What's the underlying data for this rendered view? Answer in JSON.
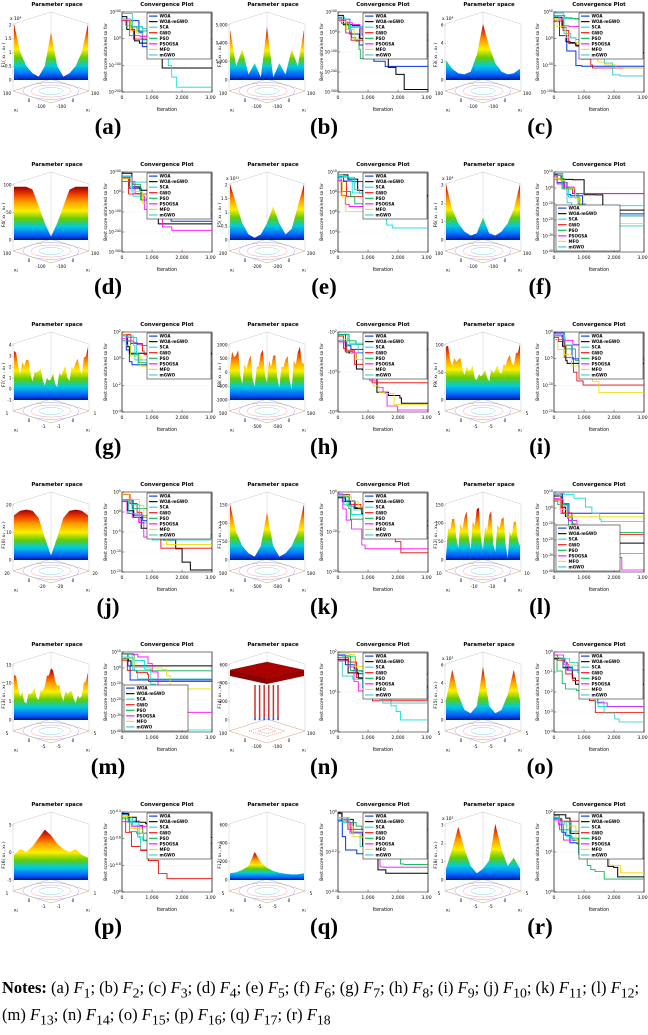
{
  "figure": {
    "type": "grid of 3D parameter-space surface plots paired with convergence line plots",
    "surface_title": "Parameter space",
    "convergence_title": "Convergence Plot",
    "convergence_ylabel": "Best score obtained so far",
    "convergence_xlabel": "Iteration",
    "x_ticks": [
      "0",
      "1,000",
      "2,000",
      "3,000"
    ],
    "legend": [
      {
        "label": "WOA",
        "color": "#0033EE"
      },
      {
        "label": "WOA-mGWO",
        "color": "#000000"
      },
      {
        "label": "SCA",
        "color": "#00E0E0"
      },
      {
        "label": "GWO",
        "color": "#EE0000"
      },
      {
        "label": "PSO",
        "color": "#00B050"
      },
      {
        "label": "PSOGSA",
        "color": "#FF00FF"
      },
      {
        "label": "MFO",
        "color": "#EEDC00"
      },
      {
        "label": "mGWO",
        "color": "#35C8C8"
      }
    ]
  },
  "chart_data": [
    {
      "label": "(a)",
      "function": "F1",
      "zlabel": "F1( x₁ , x₂ )",
      "scale": "x 10⁴",
      "z_ticks": [
        "2",
        "1.5",
        "1",
        "0.5",
        "0"
      ],
      "axis_min": "-100",
      "axis_max": "100",
      "shape": "bowl-center-peak",
      "conv_yticks": [
        "10^100",
        "10^0",
        "10^-100",
        "10^-200"
      ],
      "legend_pos": "top-right"
    },
    {
      "label": "(b)",
      "function": "F2",
      "zlabel": "F2( x₁ , x₂ )",
      "scale": "",
      "z_ticks": [
        "15,000",
        "10,000",
        "5,000",
        "0"
      ],
      "axis_min": "-100",
      "axis_max": "100",
      "shape": "v-valleys",
      "conv_yticks": [
        "10^100",
        "10^0",
        "10^-100",
        "10^-200",
        "10^-300"
      ],
      "legend_pos": "top-right"
    },
    {
      "label": "(c)",
      "function": "F3",
      "zlabel": "F3( x₁ , x₂ )",
      "scale": "x 10⁴",
      "z_ticks": [
        "6",
        "4",
        "2",
        "0"
      ],
      "axis_min": "-100",
      "axis_max": "100",
      "shape": "single-peak",
      "conv_yticks": [
        "10^50",
        "10^0",
        "10^-50",
        "10^-100"
      ],
      "legend_pos": "top-right"
    },
    {
      "label": "(d)",
      "function": "F4",
      "zlabel": "F4( x₁ , x₂ )",
      "scale": "",
      "z_ticks": [
        "100",
        "50",
        "0"
      ],
      "axis_min": "-100",
      "axis_max": "100",
      "shape": "inverted-pyramid",
      "conv_yticks": [
        "10^100",
        "10^0",
        "10^-100",
        "10^-200",
        "10^-300"
      ],
      "legend_pos": "top-right"
    },
    {
      "label": "(e)",
      "function": "F5",
      "zlabel": "F5( x₁ , x₂ )",
      "scale": "x 10¹¹",
      "z_ticks": [
        "2",
        "1.5",
        "1",
        "0.5",
        "0"
      ],
      "axis_min": "-200",
      "axis_max": "200",
      "shape": "valley",
      "conv_yticks": [
        "10^10",
        "10^8",
        "10^6",
        "10^4",
        "10^2"
      ],
      "legend_pos": "top-right"
    },
    {
      "label": "(f)",
      "function": "F6",
      "zlabel": "F6( x₁ , x₂ )",
      "scale": "x 10⁴",
      "z_ticks": [
        "3",
        "2",
        "1",
        "0"
      ],
      "axis_min": "-100",
      "axis_max": "100",
      "shape": "bowl",
      "conv_yticks": [
        "10^10",
        "10^0",
        "10^-10",
        "10^-20",
        "10^-30",
        "10^-40"
      ],
      "legend_pos": "bottom-left"
    },
    {
      "label": "(g)",
      "function": "F7",
      "zlabel": "F7( x₁ , x₂ )",
      "scale": "",
      "z_ticks": [
        "4",
        "3",
        "2",
        "1",
        "0",
        "-1"
      ],
      "axis_min": "-1",
      "axis_max": "1",
      "shape": "noisy-bowl",
      "conv_yticks": [
        "10^2",
        "10^0",
        "10^-2",
        "10^-4"
      ],
      "legend_pos": "top-right"
    },
    {
      "label": "(h)",
      "function": "F8",
      "zlabel": "F8( x₁ , x₂ )",
      "scale": "",
      "z_ticks": [
        "1000",
        "500",
        "0",
        "-500",
        "-1000"
      ],
      "axis_min": "-500",
      "axis_max": "500",
      "shape": "egg-crate",
      "conv_yticks": [
        "-10^2",
        "-10^3",
        "-10^4"
      ],
      "legend_pos": "top-right"
    },
    {
      "label": "(i)",
      "function": "F9",
      "zlabel": "F9( x₁ , x₂ )",
      "scale": "",
      "z_ticks": [
        "100",
        "50",
        "0"
      ],
      "axis_min": "-5",
      "axis_max": "5",
      "shape": "bumpy-bowl",
      "conv_yticks": [
        "10^0",
        "10^-5",
        "10^-10",
        "10^-15"
      ],
      "legend_pos": "top-right"
    },
    {
      "label": "(j)",
      "function": "F10",
      "zlabel": "F10( x₁ , x₂ )",
      "scale": "",
      "z_ticks": [
        "20",
        "10",
        "0"
      ],
      "axis_min": "-20",
      "axis_max": "20",
      "shape": "plateau-funnel",
      "conv_yticks": [
        "10^5",
        "10^0",
        "10^-5",
        "10^-10",
        "10^-15"
      ],
      "legend_pos": "top-right"
    },
    {
      "label": "(k)",
      "function": "F11",
      "zlabel": "F11( x₁ , x₂ )",
      "scale": "",
      "z_ticks": [
        "150",
        "100",
        "50",
        "0"
      ],
      "axis_min": "-500",
      "axis_max": "500",
      "shape": "bowl-center-peak",
      "conv_yticks": [
        "10^0",
        "10^-10",
        "10^-20"
      ],
      "legend_pos": "top-right"
    },
    {
      "label": "(l)",
      "function": "F12",
      "zlabel": "F12( x₁ , x₂ )",
      "scale": "",
      "z_ticks": [
        "150",
        "100",
        "50",
        "0"
      ],
      "axis_min": "-10",
      "axis_max": "10",
      "shape": "spike-rows",
      "conv_yticks": [
        "10^10",
        "10^0",
        "10^-10",
        "10^-20",
        "10^-30",
        "10^-40"
      ],
      "legend_pos": "bottom-left"
    },
    {
      "label": "(m)",
      "function": "F13",
      "zlabel": "F13( x₁ , x₂ )",
      "scale": "",
      "z_ticks": [
        "15",
        "10",
        "5",
        "0"
      ],
      "axis_min": "-5",
      "axis_max": "5",
      "shape": "ridge-valley",
      "conv_yticks": [
        "10^10",
        "10^0",
        "10^-10",
        "10^-20",
        "10^-30",
        "10^-40"
      ],
      "legend_pos": "bottom-left"
    },
    {
      "label": "(n)",
      "function": "F14",
      "zlabel": "F14( x₁ , x₂ )",
      "scale": "",
      "z_ticks": [
        "600",
        "400",
        "200",
        "0"
      ],
      "axis_min": "-100",
      "axis_max": "100",
      "shape": "plateau-pillars",
      "conv_yticks": [
        "10^2",
        "10^1",
        "10^0"
      ],
      "legend_pos": "top-right"
    },
    {
      "label": "(o)",
      "function": "F15",
      "zlabel": "F15( x₁ , x₂ )",
      "scale": "x 10⁵",
      "z_ticks": [
        "6",
        "4",
        "2",
        "0"
      ],
      "axis_min": "-5",
      "axis_max": "5",
      "shape": "four-peaks",
      "conv_yticks": [
        "10^0",
        "10^-1",
        "10^-2",
        "10^-3",
        "10^-4"
      ],
      "legend_pos": "top-right"
    },
    {
      "label": "(p)",
      "function": "F16",
      "zlabel": "F16( x₁ , x₂ )",
      "scale": "",
      "z_ticks": [
        "5",
        "0",
        "-5"
      ],
      "axis_min": "-1",
      "axis_max": "1",
      "shape": "rolling",
      "conv_yticks": [
        "-10^-0.4",
        "-10^-0.6",
        "-10^-0.8",
        "-10^0"
      ],
      "legend_pos": "top-right"
    },
    {
      "label": "(q)",
      "function": "F17",
      "zlabel": "F17( x₁ , x₂ )",
      "scale": "",
      "z_ticks": [
        "600",
        "400",
        "200",
        "0"
      ],
      "axis_min": "-5",
      "axis_max": "5",
      "shape": "low-peak",
      "conv_yticks": [
        "10^0",
        "10^-0.2",
        "10^-0.4"
      ],
      "legend_pos": "top-right"
    },
    {
      "label": "(r)",
      "function": "F18",
      "zlabel": "F18( x₁ , x₂ )",
      "scale": "x 10²",
      "z_ticks": [
        "3",
        "2",
        "1",
        "0"
      ],
      "axis_min": "-5",
      "axis_max": "5",
      "shape": "twin-peaks",
      "conv_yticks": [
        "10^2",
        "10^1",
        "10^0"
      ],
      "legend_pos": "top-right"
    }
  ],
  "notes": {
    "prefix": "Notes:",
    "separator": "; ",
    "items": [
      {
        "key": "(a)",
        "fn": "F",
        "sub": "1"
      },
      {
        "key": "(b)",
        "fn": "F",
        "sub": "2"
      },
      {
        "key": "(c)",
        "fn": "F",
        "sub": "3"
      },
      {
        "key": "(d)",
        "fn": "F",
        "sub": "4"
      },
      {
        "key": "(e)",
        "fn": "F",
        "sub": "5"
      },
      {
        "key": "(f)",
        "fn": "F",
        "sub": "6"
      },
      {
        "key": "(g)",
        "fn": "F",
        "sub": "7"
      },
      {
        "key": "(h)",
        "fn": "F",
        "sub": "8"
      },
      {
        "key": "(i)",
        "fn": "F",
        "sub": "9"
      },
      {
        "key": "(j)",
        "fn": "F",
        "sub": "10"
      },
      {
        "key": "(k)",
        "fn": "F",
        "sub": "11"
      },
      {
        "key": "(l)",
        "fn": "F",
        "sub": "12"
      },
      {
        "key": "(m)",
        "fn": "F",
        "sub": "13"
      },
      {
        "key": "(n)",
        "fn": "F",
        "sub": "14"
      },
      {
        "key": "(o)",
        "fn": "F",
        "sub": "15"
      },
      {
        "key": "(p)",
        "fn": "F",
        "sub": "16"
      },
      {
        "key": "(q)",
        "fn": "F",
        "sub": "17"
      },
      {
        "key": "(r)",
        "fn": "F",
        "sub": "18"
      }
    ]
  }
}
